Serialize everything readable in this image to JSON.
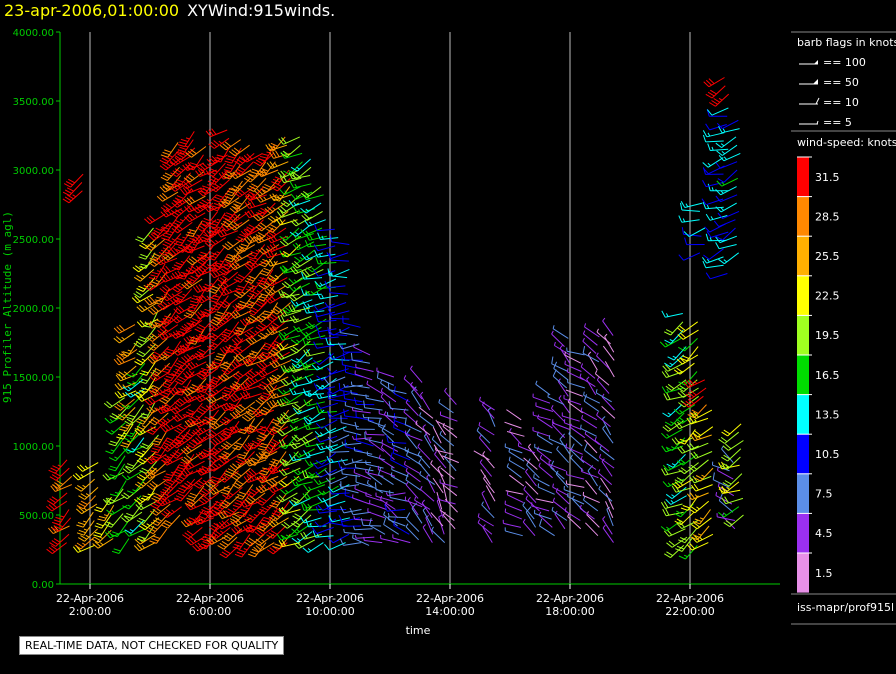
{
  "header": {
    "date_label": "23-apr-2006,01:00:00",
    "plot_name": "XYWind:915winds."
  },
  "colors": {
    "axis_label": "#00cc00",
    "y_tick": "#00cc00",
    "gridline": "#bbbbbb",
    "background": "#000000"
  },
  "chart_data": {
    "type": "scatter",
    "title": "",
    "xlabel": "time",
    "ylabel": "915 Profiler Altitude (m agl)",
    "ylim": [
      0,
      4000
    ],
    "yticks": [
      "0.00",
      "500.00",
      "1000.00",
      "1500.00",
      "2000.00",
      "2500.00",
      "3000.00",
      "3500.00",
      "4000.00"
    ],
    "xlim_hours": [
      1,
      25
    ],
    "xticks": [
      {
        "date": "22-Apr-2006",
        "time": "2:00:00",
        "hour": 2
      },
      {
        "date": "22-Apr-2006",
        "time": "6:00:00",
        "hour": 6
      },
      {
        "date": "22-Apr-2006",
        "time": "10:00:00",
        "hour": 10
      },
      {
        "date": "22-Apr-2006",
        "time": "14:00:00",
        "hour": 14
      },
      {
        "date": "22-Apr-2006",
        "time": "18:00:00",
        "hour": 18
      },
      {
        "date": "22-Apr-2006",
        "time": "22:00:00",
        "hour": 22
      }
    ],
    "grid": "vertical",
    "wind_profiles": [
      {
        "hour": 1.3,
        "bottom": 300,
        "top": 900,
        "speed": 32,
        "dir": 230
      },
      {
        "hour": 1.8,
        "bottom": 2850,
        "top": 3000,
        "speed": 30,
        "dir": 230
      },
      {
        "hour": 2.2,
        "bottom": 280,
        "top": 900,
        "speed": 25,
        "dir": 230
      },
      {
        "hour": 2.7,
        "bottom": 330,
        "top": 650,
        "speed": 24,
        "dir": 220
      },
      {
        "hour": 3.2,
        "bottom": 330,
        "top": 1400,
        "speed": 18,
        "dir": 230
      },
      {
        "hour": 3.5,
        "bottom": 1100,
        "top": 1900,
        "speed": 26,
        "dir": 230
      },
      {
        "hour": 3.8,
        "bottom": 400,
        "top": 1600,
        "speed": 17,
        "dir": 230
      },
      {
        "hour": 4.2,
        "bottom": 300,
        "top": 2600,
        "speed": 22,
        "dir": 225
      },
      {
        "hour": 4.6,
        "bottom": 400,
        "top": 2700,
        "speed": 30,
        "dir": 230
      },
      {
        "hour": 5.0,
        "bottom": 500,
        "top": 3200,
        "speed": 32,
        "dir": 230
      },
      {
        "hour": 5.4,
        "bottom": 700,
        "top": 3300,
        "speed": 33,
        "dir": 230
      },
      {
        "hour": 5.8,
        "bottom": 350,
        "top": 3200,
        "speed": 31,
        "dir": 230
      },
      {
        "hour": 6.2,
        "bottom": 300,
        "top": 3100,
        "speed": 33,
        "dir": 230
      },
      {
        "hour": 6.6,
        "bottom": 350,
        "top": 3300,
        "speed": 32,
        "dir": 230
      },
      {
        "hour": 7.0,
        "bottom": 280,
        "top": 3250,
        "speed": 31,
        "dir": 230
      },
      {
        "hour": 7.4,
        "bottom": 300,
        "top": 3200,
        "speed": 30,
        "dir": 230
      },
      {
        "hour": 7.8,
        "bottom": 300,
        "top": 3150,
        "speed": 31,
        "dir": 235
      },
      {
        "hour": 8.2,
        "bottom": 300,
        "top": 3200,
        "speed": 30,
        "dir": 230
      },
      {
        "hour": 8.6,
        "bottom": 300,
        "top": 3250,
        "speed": 29,
        "dir": 235
      },
      {
        "hour": 9.0,
        "bottom": 300,
        "top": 3250,
        "speed": 19,
        "dir": 240
      },
      {
        "hour": 9.4,
        "bottom": 320,
        "top": 3100,
        "speed": 17,
        "dir": 240
      },
      {
        "hour": 9.8,
        "bottom": 300,
        "top": 2900,
        "speed": 16,
        "dir": 250
      },
      {
        "hour": 10.2,
        "bottom": 350,
        "top": 2600,
        "speed": 13,
        "dir": 250
      },
      {
        "hour": 10.6,
        "bottom": 300,
        "top": 2500,
        "speed": 11,
        "dir": 260
      },
      {
        "hour": 11.0,
        "bottom": 300,
        "top": 1900,
        "speed": 9,
        "dir": 270
      },
      {
        "hour": 11.4,
        "bottom": 280,
        "top": 1700,
        "speed": 7,
        "dir": 280
      },
      {
        "hour": 11.8,
        "bottom": 300,
        "top": 1400,
        "speed": 6,
        "dir": 290
      },
      {
        "hour": 12.2,
        "bottom": 300,
        "top": 1500,
        "speed": 6,
        "dir": 300
      },
      {
        "hour": 12.6,
        "bottom": 300,
        "top": 1400,
        "speed": 8,
        "dir": 280
      },
      {
        "hour": 13.0,
        "bottom": 320,
        "top": 1500,
        "speed": 7,
        "dir": 310
      },
      {
        "hour": 13.4,
        "bottom": 300,
        "top": 1300,
        "speed": 5,
        "dir": 320
      },
      {
        "hour": 13.8,
        "bottom": 300,
        "top": 1100,
        "speed": 4,
        "dir": 330
      },
      {
        "hour": 14.2,
        "bottom": 400,
        "top": 1300,
        "speed": 4,
        "dir": 300
      },
      {
        "hour": 15.4,
        "bottom": 300,
        "top": 1300,
        "speed": 4,
        "dir": 320
      },
      {
        "hour": 16.4,
        "bottom": 350,
        "top": 1200,
        "speed": 4,
        "dir": 300
      },
      {
        "hour": 16.9,
        "bottom": 350,
        "top": 1000,
        "speed": 5,
        "dir": 310
      },
      {
        "hour": 17.4,
        "bottom": 350,
        "top": 1400,
        "speed": 5,
        "dir": 300
      },
      {
        "hour": 17.9,
        "bottom": 400,
        "top": 1800,
        "speed": 6,
        "dir": 310
      },
      {
        "hour": 18.4,
        "bottom": 400,
        "top": 1700,
        "speed": 5,
        "dir": 300
      },
      {
        "hour": 18.9,
        "bottom": 350,
        "top": 1800,
        "speed": 5,
        "dir": 310
      },
      {
        "hour": 19.4,
        "bottom": 300,
        "top": 1800,
        "speed": 4,
        "dir": 320
      },
      {
        "hour": 21.8,
        "bottom": 280,
        "top": 2000,
        "speed": 17,
        "dir": 240
      },
      {
        "hour": 22.2,
        "bottom": 280,
        "top": 1900,
        "speed": 20,
        "dir": 235
      },
      {
        "hour": 22.5,
        "bottom": 1300,
        "top": 1500,
        "speed": 31,
        "dir": 230
      },
      {
        "hour": 22.7,
        "bottom": 300,
        "top": 1300,
        "speed": 23,
        "dir": 235
      },
      {
        "hour": 22.4,
        "bottom": 2400,
        "top": 2800,
        "speed": 12,
        "dir": 260
      },
      {
        "hour": 23.2,
        "bottom": 2250,
        "top": 3500,
        "speed": 12,
        "dir": 250
      },
      {
        "hour": 23.6,
        "bottom": 2400,
        "top": 3400,
        "speed": 13,
        "dir": 245
      },
      {
        "hour": 23.2,
        "bottom": 3550,
        "top": 3700,
        "speed": 32,
        "dir": 225
      },
      {
        "hour": 23.4,
        "bottom": 400,
        "top": 900,
        "speed": 6,
        "dir": 300
      },
      {
        "hour": 23.7,
        "bottom": 500,
        "top": 1200,
        "speed": 20,
        "dir": 240
      }
    ]
  },
  "barb_legend": {
    "title": "barb flags in knots",
    "items": [
      "== 100",
      "== 50",
      "== 10",
      "== 5"
    ]
  },
  "speed_legend": {
    "title": "wind-speed: knots",
    "bins": [
      {
        "label": "31.5",
        "color": "#ff0000"
      },
      {
        "label": "28.5",
        "color": "#ff8800"
      },
      {
        "label": "25.5",
        "color": "#ffb000"
      },
      {
        "label": "22.5",
        "color": "#ffff00"
      },
      {
        "label": "19.5",
        "color": "#a0ff20"
      },
      {
        "label": "16.5",
        "color": "#00dd00"
      },
      {
        "label": "13.5",
        "color": "#00ffff"
      },
      {
        "label": "10.5",
        "color": "#0000ff"
      },
      {
        "label": "7.5",
        "color": "#5b8ee8"
      },
      {
        "label": "4.5",
        "color": "#9b30f0"
      },
      {
        "label": "1.5",
        "color": "#e890e8"
      }
    ]
  },
  "source_label": "iss-mapr/prof915l",
  "footer_notice": "REAL-TIME DATA, NOT CHECKED FOR QUALITY"
}
